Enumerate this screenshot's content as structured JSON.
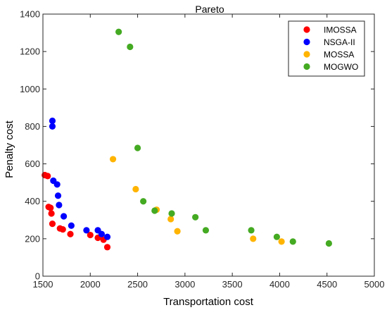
{
  "chart_data": {
    "type": "scatter",
    "title": "Pareto",
    "xlabel": "Transportation cost",
    "ylabel": "Penalty cost",
    "xlim": [
      1500,
      5000
    ],
    "ylim": [
      0,
      1400
    ],
    "xticks": [
      1500,
      2000,
      2500,
      3000,
      3500,
      4000,
      4500,
      5000
    ],
    "yticks": [
      0,
      200,
      400,
      600,
      800,
      1000,
      1200,
      1400
    ],
    "grid": false,
    "legend_position": "top-right",
    "series": [
      {
        "name": "IMOSSA",
        "color": "#ff0000",
        "points": [
          [
            1520,
            540
          ],
          [
            1550,
            535
          ],
          [
            1560,
            370
          ],
          [
            1580,
            365
          ],
          [
            1590,
            335
          ],
          [
            1600,
            280
          ],
          [
            1680,
            255
          ],
          [
            1710,
            250
          ],
          [
            1790,
            225
          ],
          [
            2000,
            220
          ],
          [
            2080,
            205
          ],
          [
            2140,
            195
          ],
          [
            2180,
            155
          ]
        ]
      },
      {
        "name": "NSGA-II",
        "color": "#0000ff",
        "points": [
          [
            1600,
            830
          ],
          [
            1600,
            800
          ],
          [
            1610,
            510
          ],
          [
            1650,
            490
          ],
          [
            1660,
            430
          ],
          [
            1670,
            380
          ],
          [
            1720,
            320
          ],
          [
            1800,
            270
          ],
          [
            1960,
            245
          ],
          [
            2080,
            245
          ],
          [
            2120,
            225
          ],
          [
            2180,
            210
          ]
        ]
      },
      {
        "name": "MOSSA",
        "color": "#ffb400",
        "points": [
          [
            2240,
            625
          ],
          [
            2480,
            465
          ],
          [
            2700,
            355
          ],
          [
            2850,
            305
          ],
          [
            2920,
            240
          ],
          [
            3720,
            200
          ],
          [
            4020,
            185
          ]
        ]
      },
      {
        "name": "MOGWO",
        "color": "#44aa22",
        "points": [
          [
            2300,
            1305
          ],
          [
            2420,
            1225
          ],
          [
            2500,
            685
          ],
          [
            2560,
            400
          ],
          [
            2680,
            350
          ],
          [
            2860,
            335
          ],
          [
            3110,
            315
          ],
          [
            3220,
            245
          ],
          [
            3700,
            245
          ],
          [
            3970,
            210
          ],
          [
            4140,
            185
          ],
          [
            4520,
            175
          ]
        ]
      }
    ]
  }
}
